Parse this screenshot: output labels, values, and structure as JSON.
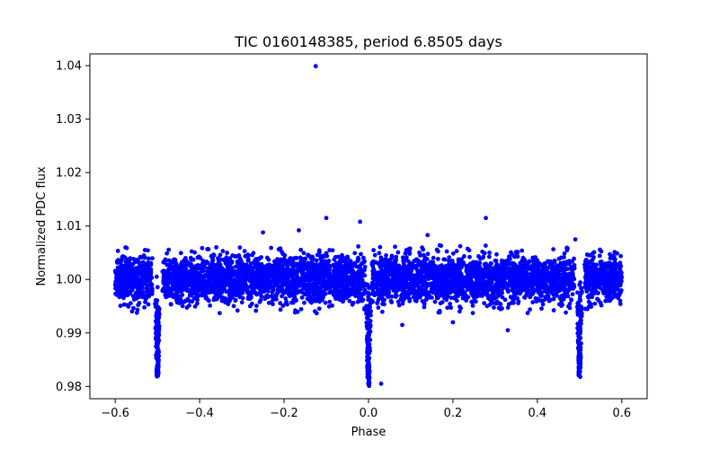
{
  "chart_data": {
    "type": "scatter",
    "title": "TIC 0160148385, period 6.8505 days",
    "xlabel": "Phase",
    "ylabel": "Normalized PDC flux",
    "xlim": [
      -0.66,
      0.66
    ],
    "ylim": [
      0.9777,
      1.0422
    ],
    "xticks": [
      -0.6,
      -0.4,
      -0.2,
      0.0,
      0.2,
      0.4,
      0.6
    ],
    "xtick_labels": [
      "−0.6",
      "−0.4",
      "−0.2",
      "0.0",
      "0.2",
      "0.4",
      "0.6"
    ],
    "yticks": [
      0.98,
      0.99,
      1.0,
      1.01,
      1.02,
      1.03,
      1.04
    ],
    "ytick_labels": [
      "0.98",
      "0.99",
      "1.00",
      "1.01",
      "1.02",
      "1.03",
      "1.04"
    ],
    "marker_color": "#0000ff",
    "grid": false,
    "band": {
      "x_range": [
        -0.6,
        0.6
      ],
      "center": 1.0,
      "spread": 0.004
    },
    "eclipses": [
      {
        "phase": -0.5,
        "depth_min": 0.982
      },
      {
        "phase": 0.0,
        "depth_min": 0.9805
      },
      {
        "phase": 0.5,
        "depth_min": 0.9822
      }
    ],
    "outliers": [
      [
        -0.125,
        1.0399
      ],
      [
        -0.1,
        1.0115
      ],
      [
        -0.02,
        1.0108
      ],
      [
        0.278,
        1.0115
      ],
      [
        -0.165,
        1.0092
      ],
      [
        0.14,
        1.0083
      ],
      [
        -0.25,
        1.0088
      ],
      [
        0.49,
        1.0075
      ],
      [
        0.03,
        0.9805
      ],
      [
        0.33,
        0.9905
      ],
      [
        0.08,
        0.9915
      ],
      [
        0.2,
        0.992
      ]
    ]
  }
}
